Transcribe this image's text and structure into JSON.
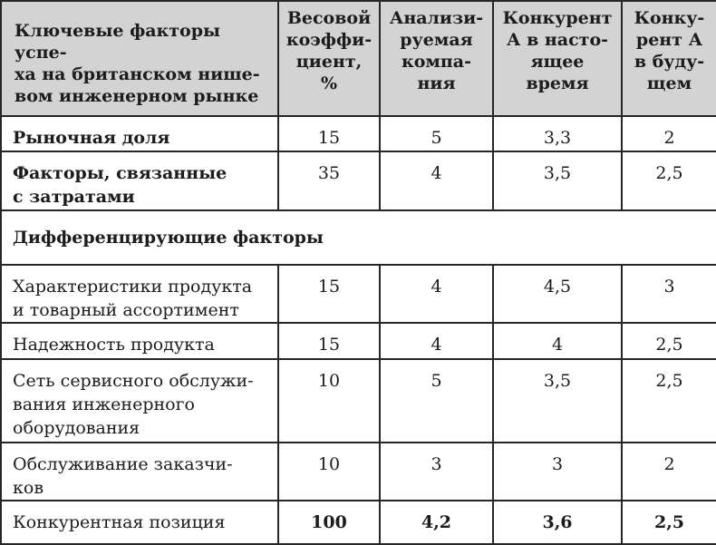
{
  "table": {
    "headers": [
      [
        "Ключевые факторы успе-",
        "ха на британском нише-",
        "вом инженерном рынке"
      ],
      [
        "Весовой",
        "коэффи-",
        "циент,",
        "%"
      ],
      [
        "Анализи-",
        "руемая",
        "компа-",
        "ния"
      ],
      [
        "Конкурент",
        "А в насто-",
        "ящее",
        "время"
      ],
      [
        "Конку-",
        "рент А",
        "в буду-",
        "щем"
      ]
    ],
    "rows": [
      {
        "factor": [
          "Рыночная доля"
        ],
        "weight": "15",
        "company": "5",
        "competitor_now": "3,3",
        "competitor_future": "2"
      },
      {
        "factor": [
          "Факторы, связанные",
          "с затратами"
        ],
        "weight": "35",
        "company": "4",
        "competitor_now": "3,5",
        "competitor_future": "2,5"
      }
    ],
    "section_title": "Дифференцирующие факторы",
    "diff_rows": [
      {
        "factor": [
          "Характеристики продукта",
          "и товарный ассортимент"
        ],
        "weight": "15",
        "company": "4",
        "competitor_now": "4,5",
        "competitor_future": "3"
      },
      {
        "factor": [
          "Надежность продукта"
        ],
        "weight": "15",
        "company": "4",
        "competitor_now": "4",
        "competitor_future": "2,5"
      },
      {
        "factor": [
          "Сеть сервисного обслужи-",
          "вания инженерного",
          "оборудования"
        ],
        "weight": "10",
        "company": "5",
        "competitor_now": "3,5",
        "competitor_future": "2,5"
      },
      {
        "factor": [
          "Обслуживание заказчи-",
          "ков"
        ],
        "weight": "10",
        "company": "3",
        "competitor_now": "3",
        "competitor_future": "2"
      }
    ],
    "total": {
      "factor": "Конкурентная позиция",
      "weight": "100",
      "company": "4,2",
      "competitor_now": "3,6",
      "competitor_future": "2,5"
    }
  }
}
